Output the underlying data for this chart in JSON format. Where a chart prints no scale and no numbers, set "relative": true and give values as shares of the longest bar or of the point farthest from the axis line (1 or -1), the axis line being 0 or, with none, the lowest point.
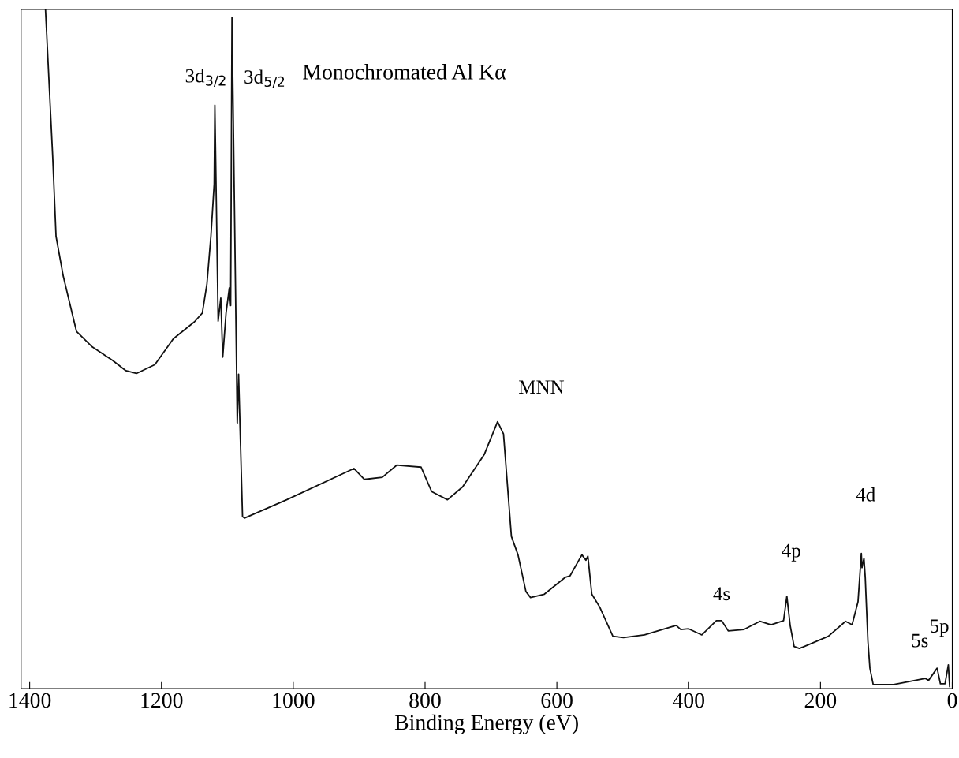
{
  "chart_data": {
    "type": "line",
    "relative": true,
    "xlabel": "Binding Energy (eV)",
    "xlim": [
      1413,
      0
    ],
    "xticks": [
      1400,
      1200,
      1000,
      800,
      600,
      400,
      200,
      0
    ],
    "grid": false,
    "legend": false,
    "marker": "none",
    "line_style": "solid",
    "series": [
      {
        "color": "#111111",
        "x": [
          1376,
          1365,
          1360,
          1349,
          1329,
          1305,
          1274,
          1254,
          1238,
          1210,
          1182,
          1150,
          1138,
          1131,
          1125,
          1120,
          1119,
          1114,
          1110,
          1107,
          1102,
          1097,
          1095,
          1093,
          1085,
          1083,
          1077,
          1074,
          1010,
          908,
          892,
          865,
          843,
          806,
          790,
          766,
          743,
          710,
          690,
          681,
          669,
          659,
          647,
          640,
          619,
          587,
          580,
          562,
          556,
          553,
          547,
          535,
          515,
          499,
          467,
          419,
          412,
          400,
          380,
          358,
          350,
          340,
          316,
          292,
          275,
          256,
          251,
          246,
          240,
          232,
          188,
          162,
          152,
          143,
          138,
          137,
          134,
          132,
          131,
          128,
          125,
          120,
          89,
          41,
          36,
          23,
          18,
          11,
          6,
          4
        ],
        "values": [
          1.0,
          0.782,
          0.666,
          0.607,
          0.526,
          0.503,
          0.483,
          0.468,
          0.464,
          0.477,
          0.515,
          0.54,
          0.553,
          0.596,
          0.666,
          0.743,
          0.859,
          0.541,
          0.575,
          0.488,
          0.553,
          0.59,
          0.564,
          0.988,
          0.391,
          0.463,
          0.253,
          0.251,
          0.278,
          0.324,
          0.308,
          0.311,
          0.329,
          0.326,
          0.29,
          0.278,
          0.297,
          0.345,
          0.393,
          0.375,
          0.224,
          0.197,
          0.143,
          0.134,
          0.139,
          0.164,
          0.166,
          0.197,
          0.189,
          0.195,
          0.139,
          0.12,
          0.077,
          0.075,
          0.079,
          0.093,
          0.087,
          0.088,
          0.079,
          0.1,
          0.1,
          0.085,
          0.087,
          0.099,
          0.094,
          0.1,
          0.136,
          0.093,
          0.062,
          0.059,
          0.077,
          0.099,
          0.094,
          0.128,
          0.199,
          0.178,
          0.192,
          0.163,
          0.139,
          0.07,
          0.03,
          0.006,
          0.006,
          0.015,
          0.012,
          0.03,
          0.007,
          0.007,
          0.035,
          0.003
        ]
      }
    ],
    "annotations": [
      {
        "text": "3d$_{3/2}$",
        "x": 1119,
        "y": 0.859
      },
      {
        "text": "3d$_{5/2}$",
        "x": 1093,
        "y": 0.988
      },
      "Monochromated Al Kα",
      {
        "text": "MNN",
        "x": 690,
        "y": 0.393
      },
      {
        "text": "4s",
        "x": 350,
        "y": 0.1
      },
      {
        "text": "4p",
        "x": 251,
        "y": 0.136
      },
      {
        "text": "4d",
        "x": 138,
        "y": 0.199
      },
      {
        "text": "5s",
        "x": 41,
        "y": 0.015
      },
      {
        "text": "5p",
        "x": 23,
        "y": 0.03
      }
    ]
  }
}
